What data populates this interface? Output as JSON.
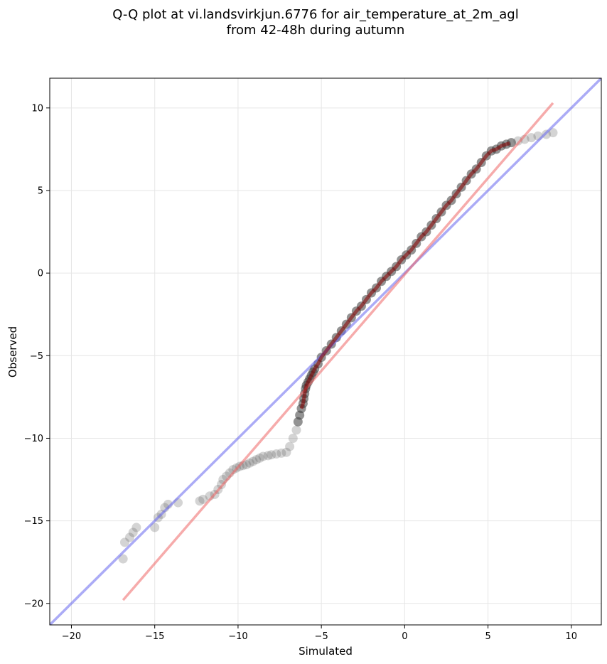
{
  "chart_data": {
    "type": "scatter",
    "title_lines": [
      "Q-Q plot at vi.landsvirkjun.6776 for air_temperature_at_2m_agl",
      "from 42-48h during autumn"
    ],
    "xlabel": "Simulated",
    "ylabel": "Observed",
    "xlim": [
      -21.3,
      11.8
    ],
    "ylim": [
      -21.3,
      11.8
    ],
    "xticks": [
      -20,
      -15,
      -10,
      -5,
      0,
      5,
      10
    ],
    "yticks": [
      -20,
      -15,
      -10,
      -5,
      0,
      5,
      10
    ],
    "grid": true,
    "colors": {
      "points": "#555555",
      "identity_line": "#6666ee",
      "fit_line": "#ee6666",
      "center_points_tint": "#8a0000"
    },
    "identity_line": {
      "x": [
        -21.3,
        11.8
      ],
      "y": [
        -21.3,
        11.8
      ]
    },
    "fit_line": {
      "x": [
        -16.9,
        8.9
      ],
      "y": [
        -19.8,
        10.3
      ]
    },
    "series": [
      {
        "x": [
          -16.9,
          -16.8,
          -16.5,
          -16.3,
          -16.1,
          -15.0,
          -14.8,
          -14.6,
          -14.4,
          -14.2,
          -13.6,
          -12.3,
          -12.1,
          -11.7,
          -11.4,
          -11.2,
          -11.0,
          -10.9,
          -10.7,
          -10.5,
          -10.3,
          -10.1,
          -9.9,
          -9.7,
          -9.5,
          -9.3,
          -9.1,
          -8.9,
          -8.7,
          -8.5,
          -8.2,
          -8.0,
          -7.7,
          -7.4,
          -7.1,
          -6.9,
          -6.7,
          -6.5,
          -6.4,
          -6.3,
          -6.2,
          -6.1,
          -6.05,
          -6.0,
          -5.95,
          -5.9,
          -5.8,
          -5.7,
          -5.6,
          -5.5,
          -5.4,
          -5.2,
          -5.0,
          -4.7,
          -4.4,
          -4.1,
          -3.8,
          -3.5,
          -3.2,
          -2.9,
          -2.6,
          -2.3,
          -2.0,
          -1.7,
          -1.4,
          -1.1,
          -0.8,
          -0.5,
          -0.2,
          0.1,
          0.4,
          0.7,
          1.0,
          1.3,
          1.6,
          1.9,
          2.2,
          2.5,
          2.8,
          3.1,
          3.4,
          3.7,
          4.0,
          4.3,
          4.6,
          4.9,
          5.2,
          5.5,
          5.8,
          6.1,
          6.4,
          6.8,
          7.2,
          7.6,
          8.0,
          8.5,
          8.9
        ],
        "y": [
          -17.3,
          -16.3,
          -16.0,
          -15.7,
          -15.4,
          -15.4,
          -14.8,
          -14.6,
          -14.2,
          -14.0,
          -13.9,
          -13.8,
          -13.7,
          -13.5,
          -13.4,
          -13.1,
          -12.8,
          -12.5,
          -12.3,
          -12.1,
          -11.9,
          -11.8,
          -11.7,
          -11.65,
          -11.6,
          -11.5,
          -11.4,
          -11.3,
          -11.2,
          -11.1,
          -11.05,
          -11.0,
          -10.95,
          -10.9,
          -10.85,
          -10.5,
          -10.0,
          -9.5,
          -9.0,
          -8.6,
          -8.2,
          -7.9,
          -7.6,
          -7.3,
          -7.0,
          -6.8,
          -6.6,
          -6.4,
          -6.2,
          -6.0,
          -5.8,
          -5.5,
          -5.1,
          -4.7,
          -4.3,
          -3.9,
          -3.5,
          -3.1,
          -2.7,
          -2.3,
          -2.0,
          -1.6,
          -1.2,
          -0.9,
          -0.5,
          -0.2,
          0.1,
          0.4,
          0.8,
          1.1,
          1.4,
          1.8,
          2.2,
          2.5,
          2.9,
          3.3,
          3.7,
          4.1,
          4.4,
          4.8,
          5.2,
          5.6,
          6.0,
          6.3,
          6.7,
          7.1,
          7.4,
          7.5,
          7.7,
          7.8,
          7.9,
          8.0,
          8.1,
          8.2,
          8.3,
          8.4,
          8.5
        ]
      }
    ]
  }
}
